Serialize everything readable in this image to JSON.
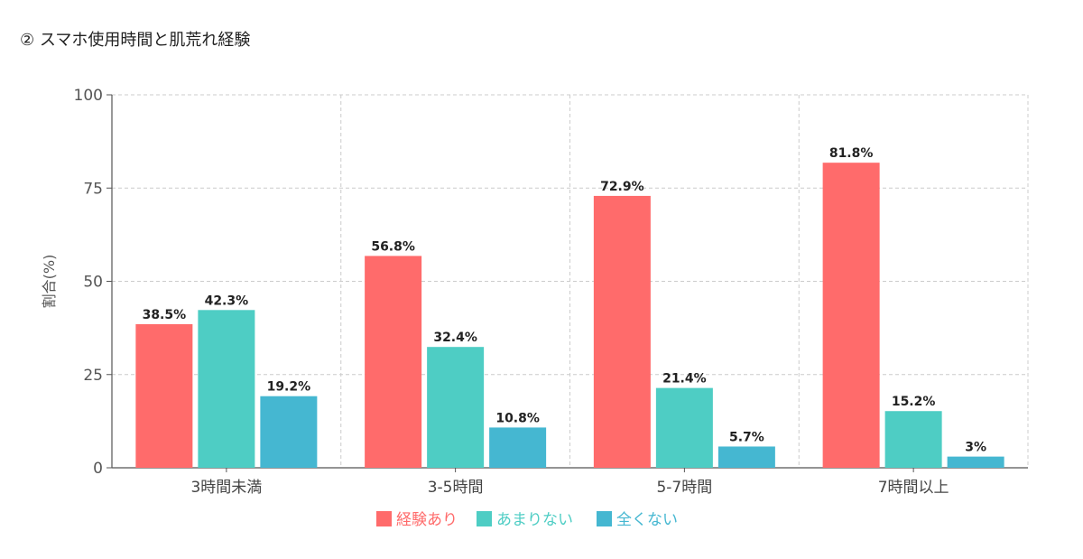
{
  "title": "② スマホ使用時間と肌荒れ経験",
  "chart_data": {
    "type": "bar",
    "title": "② スマホ使用時間と肌荒れ経験",
    "xlabel": "",
    "ylabel": "割合(%)",
    "ylim": [
      0,
      100
    ],
    "yticks": [
      0,
      25,
      50,
      75,
      100
    ],
    "grid": true,
    "legend_position": "bottom",
    "categories": [
      "3時間未満",
      "3-5時間",
      "5-7時間",
      "7時間以上"
    ],
    "series": [
      {
        "name": "経験あり",
        "color": "#FF6B6B",
        "values": [
          38.5,
          56.8,
          72.9,
          81.8
        ],
        "labels": [
          "38.5%",
          "56.8%",
          "72.9%",
          "81.8%"
        ]
      },
      {
        "name": "あまりない",
        "color": "#4ECDC4",
        "values": [
          42.3,
          32.4,
          21.4,
          15.2
        ],
        "labels": [
          "42.3%",
          "32.4%",
          "21.4%",
          "15.2%"
        ]
      },
      {
        "name": "全くない",
        "color": "#45B7D1",
        "values": [
          19.2,
          10.8,
          5.7,
          3
        ],
        "labels": [
          "19.2%",
          "10.8%",
          "5.7%",
          "3%"
        ]
      }
    ]
  }
}
